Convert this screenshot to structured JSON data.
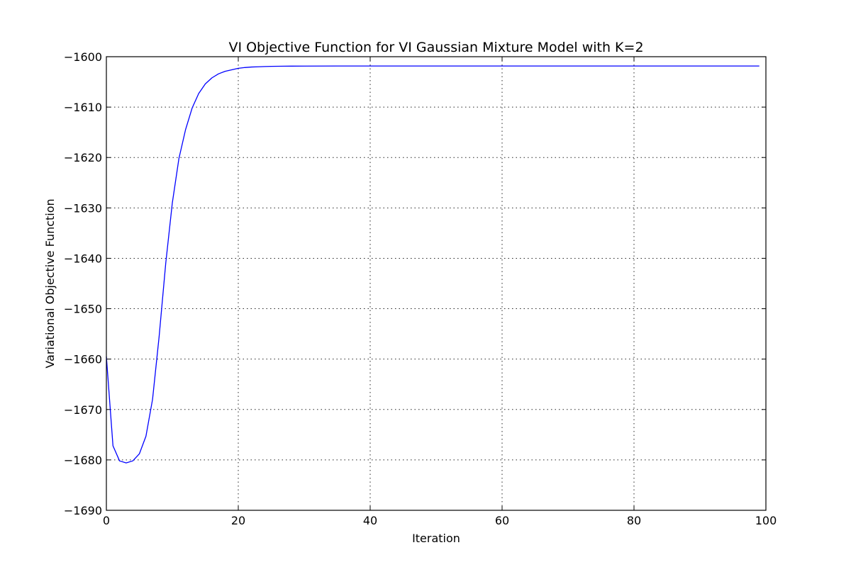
{
  "chart_data": {
    "type": "line",
    "title": "VI Objective Function for VI Gaussian Mixture Model with K=2",
    "xlabel": "Iteration",
    "ylabel": "Variational Objective Function",
    "xlim": [
      0,
      100
    ],
    "ylim": [
      -1690,
      -1600
    ],
    "xticks": [
      0,
      20,
      40,
      60,
      80,
      100
    ],
    "xtick_labels": [
      "0",
      "20",
      "40",
      "60",
      "80",
      "100"
    ],
    "yticks": [
      -1690,
      -1680,
      -1670,
      -1660,
      -1650,
      -1640,
      -1630,
      -1620,
      -1610,
      -1600
    ],
    "ytick_labels": [
      "−1690",
      "−1680",
      "−1670",
      "−1660",
      "−1650",
      "−1640",
      "−1630",
      "−1620",
      "−1610",
      "−1600"
    ],
    "grid": true,
    "line_color": "#0000ff",
    "series": [
      {
        "x": [
          0,
          1,
          2,
          3,
          4,
          5,
          6,
          7,
          8,
          9,
          10,
          11,
          12,
          13,
          14,
          15,
          16,
          17,
          18,
          19,
          20,
          21,
          22,
          23,
          24,
          25,
          26,
          27,
          28,
          30,
          35,
          40,
          50,
          60,
          70,
          80,
          90,
          99
        ],
        "y": [
          -1659.5,
          -1677.2,
          -1680.2,
          -1680.6,
          -1680.2,
          -1678.8,
          -1675.3,
          -1668.0,
          -1655.5,
          -1641.0,
          -1629.0,
          -1620.2,
          -1614.5,
          -1610.2,
          -1607.3,
          -1605.4,
          -1604.2,
          -1603.4,
          -1602.9,
          -1602.6,
          -1602.3,
          -1602.15,
          -1602.05,
          -1602.0,
          -1601.95,
          -1601.92,
          -1601.9,
          -1601.88,
          -1601.87,
          -1601.86,
          -1601.85,
          -1601.85,
          -1601.85,
          -1601.85,
          -1601.85,
          -1601.85,
          -1601.85,
          -1601.85
        ]
      }
    ]
  }
}
